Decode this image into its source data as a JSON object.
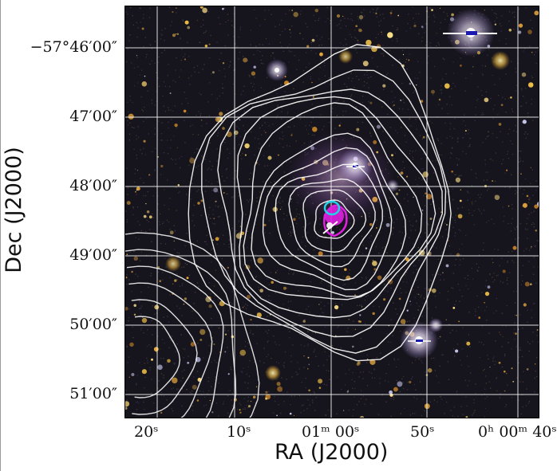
{
  "figure": {
    "x_axis_label": "RA (J2000)",
    "y_axis_label": "Dec (J2000)",
    "x_ticks": [
      "20ˢ",
      "10ˢ",
      "01ᵐ 00ˢ",
      "50ˢ",
      "0ʰ 00ᵐ 40ˢ"
    ],
    "y_ticks": [
      "−57°46′00″",
      "47′00″",
      "48′00″",
      "49′00″",
      "50′00″",
      "51′00″"
    ],
    "colors": {
      "grid": "#ffffff",
      "contour": "#ffffff",
      "marker_cyan": "#22d3e6",
      "marker_magenta": "#e020e0",
      "sky_background": "#16141c"
    }
  }
}
